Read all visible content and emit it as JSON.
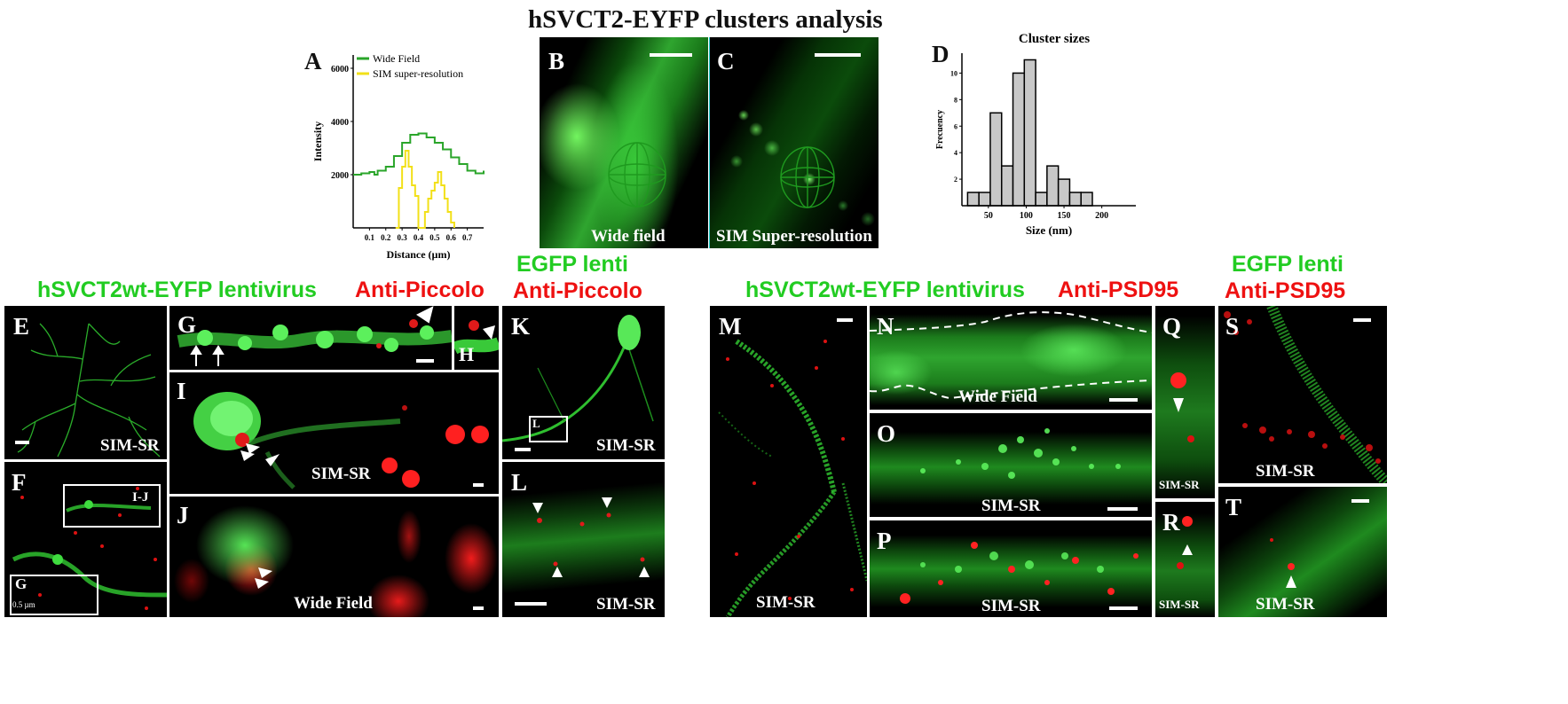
{
  "figure": {
    "title": "hSVCT2-EYFP clusters analysis",
    "headings": {
      "left_green": "hSVCT2wt-EYFP lentivirus",
      "left_red": "Anti-Piccolo",
      "mid_green": "EGFP lenti",
      "mid_red": "Anti-Piccolo",
      "right_green": "hSVCT2wt-EYFP lentivirus",
      "right_red": "Anti-PSD95",
      "far_green": "EGFP lenti",
      "far_red": "Anti-PSD95"
    },
    "panels": {
      "A": "A",
      "B": "B",
      "C": "C",
      "D": "D",
      "E": "E",
      "F": "F",
      "G": "G",
      "H": "H",
      "I": "I",
      "J": "J",
      "K": "K",
      "L": "L",
      "M": "M",
      "N": "N",
      "O": "O",
      "P": "P",
      "Q": "Q",
      "R": "R",
      "S": "S",
      "T": "T"
    },
    "captions": {
      "B": "Wide field",
      "C": "SIM Super-resolution",
      "E": "SIM-SR",
      "F_box1": "I-J",
      "F_box2": "G",
      "F_scale": "0.5 µm",
      "I": "SIM-SR",
      "J": "Wide Field",
      "K": "SIM-SR",
      "K_box": "L",
      "L": "SIM-SR",
      "M": "SIM-SR",
      "N": "Wide Field",
      "O": "SIM-SR",
      "P": "SIM-SR",
      "Q": "SIM-SR",
      "R": "SIM-SR",
      "S": "SIM-SR",
      "T": "SIM-SR"
    }
  },
  "chart_data": [
    {
      "type": "line",
      "panel": "A",
      "xlabel": "Distance (µm)",
      "ylabel": "Intensity",
      "xticks": [
        0.1,
        0.2,
        0.3,
        0.4,
        0.5,
        0.6,
        0.7
      ],
      "yticks": [
        2000,
        4000,
        6000
      ],
      "xlim": [
        0,
        0.8
      ],
      "ylim": [
        0,
        6500
      ],
      "legend_position": "top",
      "series": [
        {
          "name": "Wide Field",
          "color": "#2aa52a",
          "x": [
            0,
            0.05,
            0.1,
            0.13,
            0.15,
            0.2,
            0.25,
            0.3,
            0.35,
            0.4,
            0.45,
            0.5,
            0.55,
            0.6,
            0.65,
            0.7,
            0.75,
            0.8
          ],
          "y": [
            2000,
            2050,
            2100,
            2000,
            2150,
            2300,
            2700,
            3200,
            3500,
            3550,
            3400,
            3200,
            2950,
            2650,
            2400,
            2150,
            2050,
            2150
          ]
        },
        {
          "name": "SIM super-resolution",
          "color": "#f2e018",
          "x": [
            0.26,
            0.28,
            0.3,
            0.32,
            0.34,
            0.36,
            0.38,
            0.4,
            0.42,
            0.44,
            0.46,
            0.48,
            0.5,
            0.52,
            0.54,
            0.56,
            0.58,
            0.6,
            0.62
          ],
          "y": [
            0,
            1500,
            2300,
            2900,
            2300,
            1600,
            1200,
            0,
            0,
            600,
            1100,
            1400,
            1700,
            2100,
            1600,
            1100,
            600,
            200,
            0
          ]
        }
      ]
    },
    {
      "type": "bar",
      "panel": "D",
      "title": "Cluster sizes",
      "xlabel": "Size (nm)",
      "ylabel": "Frecuency",
      "xticks": [
        50,
        100,
        150,
        200
      ],
      "yticks": [
        2,
        4,
        6,
        8,
        10
      ],
      "xlim": [
        15,
        245
      ],
      "ylim": [
        0,
        11.5
      ],
      "bin_width": 15,
      "bin_starts": [
        22.5,
        37.5,
        52.5,
        67.5,
        82.5,
        97.5,
        112.5,
        127.5,
        142.5,
        157.5,
        172.5,
        187.5,
        202.5,
        217.5
      ],
      "values": [
        1,
        1,
        7,
        3,
        10,
        11,
        1,
        3,
        2,
        1,
        1,
        0,
        0,
        0
      ],
      "bar_color": "#c8c8c8"
    }
  ]
}
